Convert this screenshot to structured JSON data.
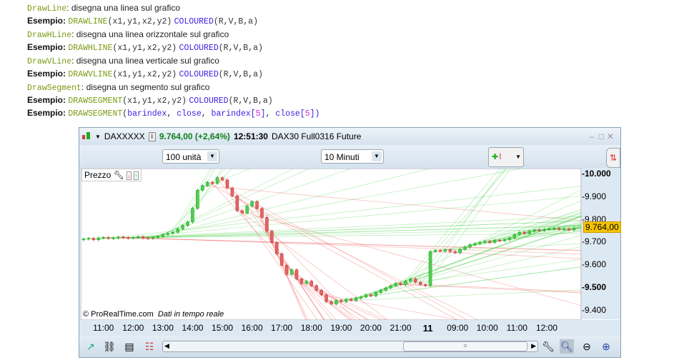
{
  "doc": {
    "drawline": {
      "name": "DrawLine",
      "desc": ": disegna una linea sul grafico",
      "ex_label": "Esempio:",
      "fn": "DRAWLINE",
      "args": "(x1,y1,x2,y2)",
      "col": "COLOURED",
      "col_args": "(R,V,B,a)"
    },
    "drawhline": {
      "name": "DrawHLine",
      "desc": ": disegna una linea orizzontale sul grafico",
      "ex_label": "Esempio:",
      "fn": "DRAWHLINE",
      "args": "(x1,y1,x2,y2)",
      "col": "COLOURED",
      "col_args": "(R,V,B,a)"
    },
    "drawvline": {
      "name": "DrawVLine",
      "desc": ": disegna una linea verticale sul grafico",
      "ex_label": "Esempio:",
      "fn": "DRAWVLINE",
      "args": "(x1,y1,x2,y2)",
      "col": "COLOURED",
      "col_args": "(R,V,B,a)"
    },
    "drawsegment": {
      "name": "DrawSegment",
      "desc": ": disegna un segmento sul grafico",
      "ex_label": "Esempio:",
      "fn": "DRAWSEGMENT",
      "args": "(x1,y1,x2,y2)",
      "col": "COLOURED",
      "col_args": "(R,V,B,a)",
      "ex2_label": "Esempio:",
      "ex2_fn": "DRAWSEGMENT",
      "p1": "(",
      "a1": "barindex",
      "c1": ", ",
      "a2": "close",
      "c2": ", ",
      "a3": "barindex",
      "b3": "[",
      "n3": "5",
      "e3": "]",
      "c3": ", ",
      "a4": "close",
      "b4": "[",
      "n4": "5",
      "e4": "])"
    }
  },
  "window": {
    "symbol": "DAXXXXX",
    "price": "9.764,00 (+2,64%)",
    "time": "12:51:30",
    "instrument": "DAX30 Full0316 Future",
    "units": "100 unità",
    "timeframe": "10 Minuti",
    "panel_label": "Prezzo",
    "copyright": "© ProRealTime.com",
    "realtime": "Dati in tempo reale",
    "last_price_label": "9.764,00"
  },
  "chart_data": {
    "type": "candlestick",
    "ylim": [
      9370,
      10020
    ],
    "y_ticks": [
      {
        "v": 10000,
        "label": "10.000",
        "bold": true
      },
      {
        "v": 9900,
        "label": "9.900"
      },
      {
        "v": 9800,
        "label": "9.800"
      },
      {
        "v": 9700,
        "label": "9.700"
      },
      {
        "v": 9600,
        "label": "9.600"
      },
      {
        "v": 9500,
        "label": "9.500",
        "bold": true
      },
      {
        "v": 9400,
        "label": "9.400"
      }
    ],
    "x_ticks": [
      {
        "label": "11:00",
        "bar": 4
      },
      {
        "label": "12:00",
        "bar": 10
      },
      {
        "label": "13:00",
        "bar": 16
      },
      {
        "label": "14:00",
        "bar": 22
      },
      {
        "label": "15:00",
        "bar": 28
      },
      {
        "label": "16:00",
        "bar": 34
      },
      {
        "label": "17:00",
        "bar": 40
      },
      {
        "label": "18:00",
        "bar": 46
      },
      {
        "label": "19:00",
        "bar": 52
      },
      {
        "label": "20:00",
        "bar": 58
      },
      {
        "label": "21:00",
        "bar": 64
      },
      {
        "label": "11",
        "bar": 69.5,
        "bold": true
      },
      {
        "label": "09:00",
        "bar": 75.5
      },
      {
        "label": "10:00",
        "bar": 81.5
      },
      {
        "label": "11:00",
        "bar": 87.5
      },
      {
        "label": "12:00",
        "bar": 93.5
      }
    ],
    "closes": [
      9715,
      9718,
      9712,
      9720,
      9722,
      9718,
      9720,
      9724,
      9721,
      9719,
      9722,
      9725,
      9720,
      9718,
      9722,
      9726,
      9735,
      9740,
      9745,
      9760,
      9775,
      9790,
      9850,
      9930,
      9950,
      9965,
      9960,
      9985,
      9975,
      9940,
      9905,
      9840,
      9830,
      9860,
      9880,
      9850,
      9810,
      9750,
      9700,
      9650,
      9600,
      9560,
      9580,
      9540,
      9520,
      9530,
      9510,
      9490,
      9470,
      9440,
      9430,
      9445,
      9440,
      9450,
      9445,
      9455,
      9460,
      9470,
      9465,
      9480,
      9490,
      9500,
      9510,
      9520,
      9515,
      9530,
      9540,
      9525,
      9515,
      9510,
      9660,
      9665,
      9662,
      9668,
      9660,
      9655,
      9670,
      9680,
      9690,
      9695,
      9700,
      9705,
      9700,
      9710,
      9708,
      9712,
      9720,
      9735,
      9745,
      9740,
      9750,
      9755,
      9752,
      9758,
      9760,
      9762,
      9758,
      9760,
      9755,
      9764
    ],
    "last": 9764,
    "up_color": "#22aa22",
    "down_color": "#d04040"
  }
}
